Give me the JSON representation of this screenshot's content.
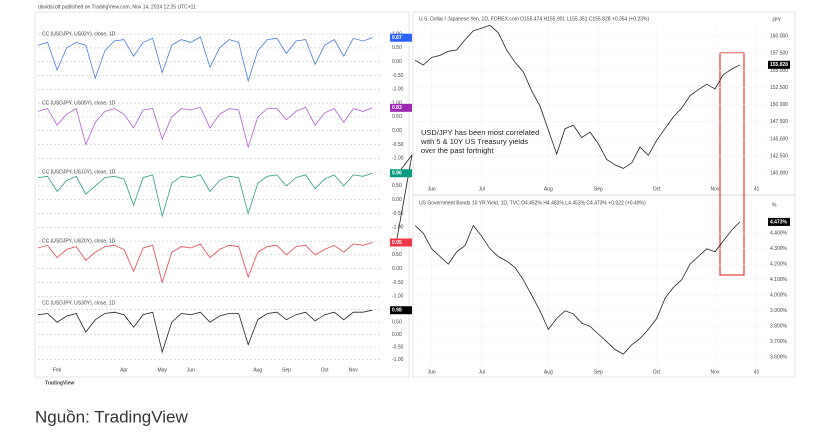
{
  "header": "davidscott published on TradingView.com, Nov 14, 2024 12:25 UTC+11",
  "footer": "TradingView",
  "caption": "Nguồn: TradingView",
  "chart_data": [
    {
      "type": "line",
      "title": "CC (USDJPY, US02Y), close, 1D",
      "color": "#4a7fd6",
      "badge_color": "#2962ff",
      "values": [
        0.6,
        0.7,
        -0.3,
        0.5,
        0.7,
        0.6,
        -0.6,
        0.4,
        0.75,
        0.8,
        0.2,
        0.7,
        0.85,
        -0.4,
        0.6,
        0.8,
        0.7,
        0.9,
        -0.2,
        0.5,
        0.8,
        0.7,
        -0.7,
        0.4,
        0.8,
        0.85,
        0.3,
        0.75,
        0.8,
        -0.1,
        0.6,
        0.8,
        0.2,
        0.85,
        0.75,
        0.87
      ],
      "last_value": 0.87,
      "xlim": [
        0,
        36
      ],
      "ylim": [
        -1.1,
        1.15
      ],
      "yticks": [
        {
          "value": 1,
          "label": "1.00"
        },
        {
          "value": 0.5,
          "label": "0.50"
        },
        {
          "value": 0,
          "label": "0.00"
        },
        {
          "value": -0.5,
          "label": "-0.50"
        },
        {
          "value": -1,
          "label": "-1.00"
        }
      ]
    },
    {
      "type": "line",
      "title": "CC (USDJPY, US05Y), close, 1D",
      "color": "#b05fcf",
      "badge_color": "#9c27b0",
      "values": [
        0.7,
        0.8,
        0.2,
        0.6,
        0.8,
        -0.5,
        0.3,
        0.7,
        0.8,
        0.6,
        0.1,
        0.75,
        0.8,
        -0.3,
        0.5,
        0.8,
        0.75,
        0.85,
        0.1,
        0.6,
        0.8,
        0.75,
        -0.6,
        0.5,
        0.8,
        0.8,
        0.4,
        0.7,
        0.85,
        0.2,
        0.65,
        0.8,
        0.3,
        0.8,
        0.7,
        0.83
      ],
      "last_value": 0.83,
      "xlim": [
        0,
        36
      ],
      "ylim": [
        -1.1,
        1.15
      ],
      "yticks": [
        {
          "value": 1,
          "label": "1.00"
        },
        {
          "value": 0.5,
          "label": "0.50"
        },
        {
          "value": 0,
          "label": "0.00"
        },
        {
          "value": -0.5,
          "label": "-0.50"
        },
        {
          "value": -1,
          "label": "-1.00"
        }
      ]
    },
    {
      "type": "line",
      "title": "CC (USDJPY, US10Y), close, 1D",
      "color": "#2e9e84",
      "badge_color": "#089981",
      "values": [
        0.8,
        0.85,
        0.3,
        0.7,
        0.85,
        0.2,
        0.5,
        0.8,
        0.85,
        0.75,
        -0.2,
        0.8,
        0.9,
        -0.6,
        0.6,
        0.85,
        0.8,
        0.9,
        0.3,
        0.7,
        0.85,
        0.8,
        -0.5,
        0.6,
        0.85,
        0.9,
        0.5,
        0.8,
        0.9,
        0.4,
        0.75,
        0.9,
        0.5,
        0.9,
        0.85,
        0.96
      ],
      "last_value": 0.96,
      "xlim": [
        0,
        36
      ],
      "ylim": [
        -1.1,
        1.15
      ],
      "yticks": [
        {
          "value": 1,
          "label": "1.00"
        },
        {
          "value": 0.5,
          "label": "0.50"
        },
        {
          "value": 0,
          "label": "0.00"
        },
        {
          "value": -0.5,
          "label": "-0.50"
        },
        {
          "value": -1,
          "label": "-1.00"
        }
      ]
    },
    {
      "type": "line",
      "title": "CC (USDJPY, US20Y), close, 1D",
      "color": "#e5484d",
      "badge_color": "#f23645",
      "values": [
        0.75,
        0.85,
        0.4,
        0.7,
        0.8,
        0.3,
        0.6,
        0.8,
        0.85,
        0.7,
        -0.1,
        0.75,
        0.85,
        -0.5,
        0.6,
        0.8,
        0.75,
        0.9,
        0.4,
        0.7,
        0.85,
        0.8,
        -0.3,
        0.6,
        0.8,
        0.85,
        0.5,
        0.8,
        0.85,
        0.5,
        0.7,
        0.85,
        0.6,
        0.9,
        0.85,
        0.95
      ],
      "last_value": 0.95,
      "xlim": [
        0,
        36
      ],
      "ylim": [
        -1.1,
        1.15
      ],
      "yticks": [
        {
          "value": 1,
          "label": "1.00"
        },
        {
          "value": 0.5,
          "label": "0.50"
        },
        {
          "value": 0,
          "label": "0.00"
        },
        {
          "value": -0.5,
          "label": "-0.50"
        },
        {
          "value": -1,
          "label": "-1.00"
        }
      ]
    },
    {
      "type": "line",
      "title": "CC (USDJPY, US30Y), close, 1D",
      "color": "#222222",
      "badge_color": "#000000",
      "values": [
        0.8,
        0.85,
        0.5,
        0.75,
        0.85,
        0.1,
        0.6,
        0.85,
        0.9,
        0.8,
        0.3,
        0.8,
        0.9,
        -0.7,
        0.5,
        0.85,
        0.8,
        0.9,
        0.5,
        0.75,
        0.85,
        0.85,
        -0.4,
        0.6,
        0.85,
        0.9,
        0.6,
        0.8,
        0.9,
        0.55,
        0.8,
        0.9,
        0.6,
        0.9,
        0.9,
        0.98
      ],
      "last_value": 0.98,
      "xlim": [
        0,
        36
      ],
      "ylim": [
        -1.1,
        1.15
      ],
      "yticks": [
        {
          "value": 1,
          "label": "1.00"
        },
        {
          "value": 0.5,
          "label": "0.50"
        },
        {
          "value": 0,
          "label": "0.00"
        },
        {
          "value": -0.5,
          "label": "-0.50"
        },
        {
          "value": -1,
          "label": "-1.00"
        }
      ],
      "xticks": [
        {
          "value": 2,
          "label": "Feb"
        },
        {
          "value": 9,
          "label": "Apr"
        },
        {
          "value": 13,
          "label": "May"
        },
        {
          "value": 16,
          "label": "Jun"
        },
        {
          "value": 23,
          "label": "Aug"
        },
        {
          "value": 26,
          "label": "Sep"
        },
        {
          "value": 30,
          "label": "Oct"
        },
        {
          "value": 33,
          "label": "Nov"
        }
      ]
    },
    {
      "type": "line",
      "title": "U.S. Dollar / Japanese Yen, 1D, FOREX.com O155.474 H155.901 L155.351 C155.828 +0.354 (+0.23%)",
      "unit": "JPY",
      "color": "#222222",
      "badge_color": "#000000",
      "annotation": "USD/JPY has been most correlated with 5 & 10Y US Treasury yields over the past fortnight",
      "values": [
        156.5,
        155.8,
        156.9,
        157.2,
        157.8,
        158.0,
        159.5,
        160.8,
        161.2,
        161.6,
        160.5,
        158.0,
        156.2,
        154.8,
        152.0,
        149.8,
        146.3,
        142.8,
        146.5,
        147.0,
        145.2,
        146.0,
        144.3,
        142.0,
        141.2,
        140.7,
        141.5,
        143.8,
        142.6,
        144.8,
        146.5,
        148.2,
        149.5,
        151.3,
        152.2,
        153.0,
        152.3,
        154.4,
        155.2,
        155.828
      ],
      "last_value": 155.828,
      "xlim": [
        0,
        42
      ],
      "ylim": [
        139,
        161.5
      ],
      "yticks": [
        {
          "value": 160,
          "label": "160.000"
        },
        {
          "value": 157.5,
          "label": "157.500"
        },
        {
          "value": 155,
          "label": "155.000"
        },
        {
          "value": 152.5,
          "label": "152.500"
        },
        {
          "value": 150,
          "label": "150.000"
        },
        {
          "value": 147.5,
          "label": "147.500"
        },
        {
          "value": 145,
          "label": "145.000"
        },
        {
          "value": 142.5,
          "label": "142.500"
        },
        {
          "value": 140,
          "label": "140.000"
        }
      ],
      "xticks": [
        {
          "value": 2,
          "label": "Jun"
        },
        {
          "value": 8,
          "label": "Jul"
        },
        {
          "value": 16,
          "label": "Aug"
        },
        {
          "value": 22,
          "label": "Sep"
        },
        {
          "value": 29,
          "label": "Oct"
        },
        {
          "value": 36,
          "label": "Nov"
        },
        41
      ]
    },
    {
      "type": "line",
      "title": "US Government Bonds 10 YR Yield, 1D, TVC O4.452% H4.483% L4.453% C4.473% +0.022 (+0.49%)",
      "unit": "%",
      "color": "#222222",
      "badge_color": "#000000",
      "values": [
        4.45,
        4.4,
        4.3,
        4.25,
        4.2,
        4.28,
        4.32,
        4.45,
        4.38,
        4.3,
        4.25,
        4.22,
        4.18,
        4.1,
        4.0,
        3.9,
        3.78,
        3.85,
        3.9,
        3.88,
        3.82,
        3.8,
        3.75,
        3.7,
        3.65,
        3.62,
        3.68,
        3.72,
        3.78,
        3.85,
        3.98,
        4.05,
        4.1,
        4.2,
        4.25,
        4.3,
        4.28,
        4.35,
        4.42,
        4.473
      ],
      "last_value": {
        "value": 4.473,
        "label": "4.473%"
      },
      "xlim": [
        0,
        42
      ],
      "ylim": [
        3.55,
        4.55
      ],
      "yticks": [
        {
          "value": 4.4,
          "label": "4.400%"
        },
        {
          "value": 4.3,
          "label": "4.300%"
        },
        {
          "value": 4.2,
          "label": "4.200%"
        },
        {
          "value": 4.1,
          "label": "4.100%"
        },
        {
          "value": 4.0,
          "label": "4.000%"
        },
        {
          "value": 3.9,
          "label": "3.900%"
        },
        {
          "value": 3.8,
          "label": "3.800%"
        },
        {
          "value": 3.7,
          "label": "3.700%"
        },
        {
          "value": 3.6,
          "label": "3.600%"
        }
      ],
      "xticks": [
        {
          "value": 2,
          "label": "Jun"
        },
        {
          "value": 8,
          "label": "Jul"
        },
        {
          "value": 16,
          "label": "Aug"
        },
        {
          "value": 22,
          "label": "Sep"
        },
        {
          "value": 29,
          "label": "Oct"
        },
        {
          "value": 36,
          "label": "Nov"
        },
        41
      ]
    }
  ]
}
